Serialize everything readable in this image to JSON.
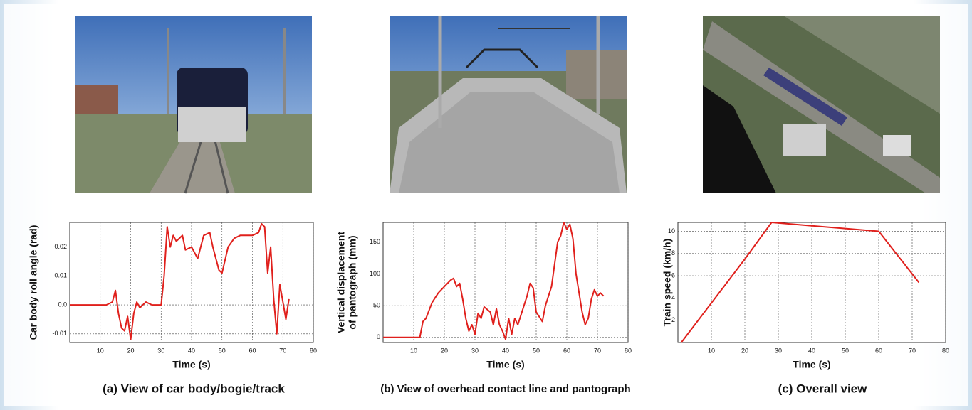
{
  "chart_data": [
    {
      "type": "line",
      "caption": "(a) View of car body/bogie/track",
      "xlabel": "Time (s)",
      "ylabel": "Car body roll angle (rad)",
      "color": "#e0201c",
      "grid": true,
      "xlim": [
        0,
        80
      ],
      "xticks": [
        10,
        20,
        30,
        40,
        50,
        60,
        70,
        80
      ],
      "ylim": [
        -0.013,
        0.0285
      ],
      "yticks": [
        -0.01,
        {
          "value": 0,
          "label": "0.0"
        },
        0.01,
        0.02
      ],
      "x": [
        0,
        12,
        14,
        15,
        16,
        17,
        18,
        19,
        20,
        21,
        22,
        23,
        25,
        27,
        30,
        31,
        32,
        33,
        34,
        35,
        37,
        38,
        40,
        42,
        44,
        46,
        47,
        49,
        50,
        52,
        54,
        56,
        60,
        62,
        63,
        64,
        65,
        66,
        67,
        68,
        69,
        70,
        71,
        72
      ],
      "values": [
        0,
        0,
        0.001,
        0.005,
        -0.003,
        -0.008,
        -0.009,
        -0.004,
        -0.012,
        -0.003,
        0.001,
        -0.001,
        0.001,
        0,
        0,
        0.01,
        0.027,
        0.02,
        0.024,
        0.022,
        0.024,
        0.019,
        0.02,
        0.016,
        0.024,
        0.025,
        0.02,
        0.012,
        0.011,
        0.02,
        0.023,
        0.024,
        0.024,
        0.025,
        0.028,
        0.027,
        0.011,
        0.02,
        0.002,
        -0.01,
        0.007,
        0.001,
        -0.005,
        0.002
      ]
    },
    {
      "type": "line",
      "caption": "(b) View of overhead contact line and pantograph",
      "xlabel": "Time (s)",
      "ylabel": [
        "Vertical displacement",
        "of pantograph (mm)"
      ],
      "color": "#e0201c",
      "grid": true,
      "xlim": [
        0,
        80
      ],
      "xticks": [
        10,
        20,
        30,
        40,
        50,
        60,
        70,
        80
      ],
      "ylim": [
        -8,
        181
      ],
      "yticks": [
        0,
        50,
        100,
        150
      ],
      "x": [
        0,
        12,
        13,
        14,
        16,
        18,
        20,
        22,
        23,
        24,
        25,
        26,
        27,
        28,
        29,
        30,
        31,
        32,
        33,
        35,
        36,
        37,
        38,
        39,
        40,
        41,
        42,
        43,
        44,
        45,
        47,
        48,
        49,
        50,
        52,
        53,
        55,
        57,
        58,
        59,
        60,
        61,
        62,
        63,
        65,
        66,
        67,
        68,
        69,
        70,
        71,
        72
      ],
      "values": [
        0,
        0,
        25,
        30,
        55,
        70,
        80,
        90,
        93,
        80,
        85,
        60,
        30,
        10,
        20,
        5,
        38,
        30,
        48,
        40,
        20,
        45,
        20,
        10,
        -3,
        30,
        5,
        30,
        20,
        35,
        65,
        85,
        78,
        40,
        25,
        50,
        80,
        150,
        160,
        181,
        170,
        178,
        155,
        100,
        40,
        20,
        30,
        60,
        75,
        65,
        70,
        65
      ]
    },
    {
      "type": "line",
      "caption": "(c) Overall view",
      "xlabel": "Time (s)",
      "ylabel": "Train speed (km/h)",
      "color": "#e0201c",
      "grid": true,
      "xlim": [
        0,
        80
      ],
      "xticks": [
        10,
        20,
        30,
        40,
        50,
        60,
        70,
        80
      ],
      "ylim": [
        0,
        10.8
      ],
      "yticks": [
        2,
        4,
        6,
        8,
        10
      ],
      "x": [
        1,
        20,
        28,
        40,
        60,
        72
      ],
      "values": [
        0,
        7.5,
        10.8,
        10.5,
        10.0,
        5.4
      ]
    }
  ]
}
